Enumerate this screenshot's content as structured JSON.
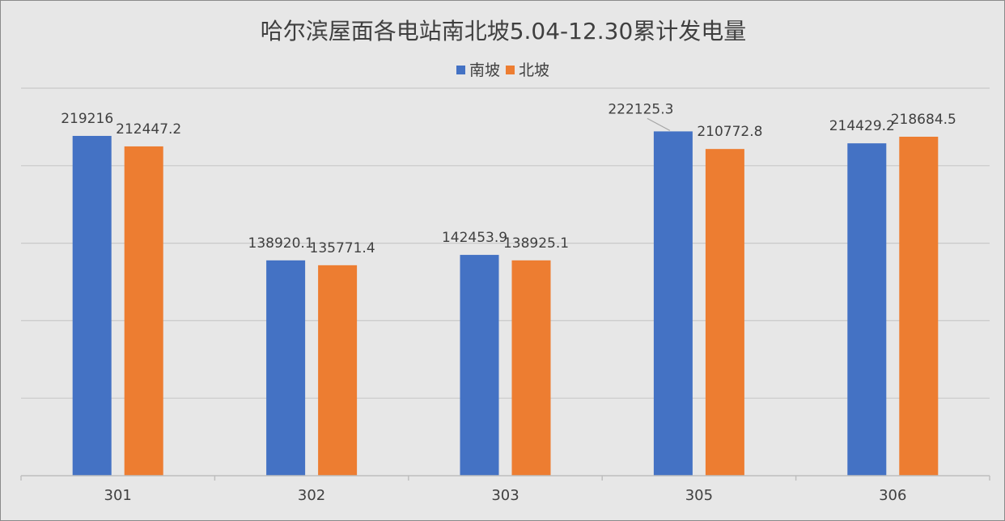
{
  "chart_data": {
    "type": "bar",
    "title": "哈尔滨屋面各电站南北坡5.04-12.30累计发电量",
    "xlabel": "",
    "ylabel": "",
    "categories": [
      "301",
      "302",
      "303",
      "305",
      "306"
    ],
    "series": [
      {
        "name": "南坡",
        "color": "#4472c4",
        "values": [
          219216,
          138920.1,
          142453.9,
          222125.3,
          214429.2
        ],
        "labels": [
          "219216",
          "138920.1",
          "142453.9",
          "222125.3",
          "214429.2"
        ]
      },
      {
        "name": "北坡",
        "color": "#ed7d31",
        "values": [
          212447.2,
          135771.4,
          138925.1,
          210772.8,
          218684.5
        ],
        "labels": [
          "212447.2",
          "135771.4",
          "138925.1",
          "210772.8",
          "218684.5"
        ]
      }
    ],
    "ylim": [
      0,
      250000
    ],
    "gridlines": true,
    "y_tick_labels_visible": false,
    "legend_position": "top-center"
  }
}
